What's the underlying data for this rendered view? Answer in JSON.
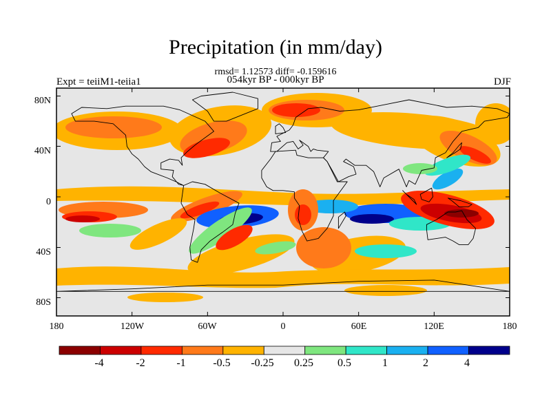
{
  "title": "Precipitation (in mm/day)",
  "stats": "rmsd= 1.12573 diff= -0.159616",
  "period": "054kyr BP - 000kyr BP",
  "experiment": "Expt = teiiM1-teiia1",
  "season": "DJF",
  "lat_ticks": [
    "80N",
    "40N",
    "0",
    "40S",
    "80S"
  ],
  "lon_ticks": [
    "180",
    "120W",
    "60W",
    "0",
    "60E",
    "120E",
    "180"
  ],
  "colorbar": {
    "labels": [
      "-4",
      "-2",
      "-1",
      "-0.5",
      "-0.25",
      "0.25",
      "0.5",
      "1",
      "2",
      "4"
    ],
    "colors": [
      "#8b0000",
      "#cc0000",
      "#ff2a00",
      "#ff7a1a",
      "#ffb300",
      "#e6e6e6",
      "#7fe67f",
      "#30e6c8",
      "#1ab0f0",
      "#1060ff",
      "#00008b"
    ]
  },
  "chart_data": {
    "type": "heatmap",
    "title": "Precipitation (in mm/day)",
    "variable": "precipitation difference",
    "units": "mm/day",
    "season": "DJF",
    "rmsd": 1.12573,
    "diff": -0.159616,
    "comparison": "054kyr BP - 000kyr BP",
    "experiment": "teiiM1-teiia1",
    "xlim": [
      -180,
      180
    ],
    "ylim": [
      -90,
      90
    ],
    "contour_levels": [
      -4,
      -2,
      -1,
      -0.5,
      -0.25,
      0.25,
      0.5,
      1,
      2,
      4
    ]
  }
}
